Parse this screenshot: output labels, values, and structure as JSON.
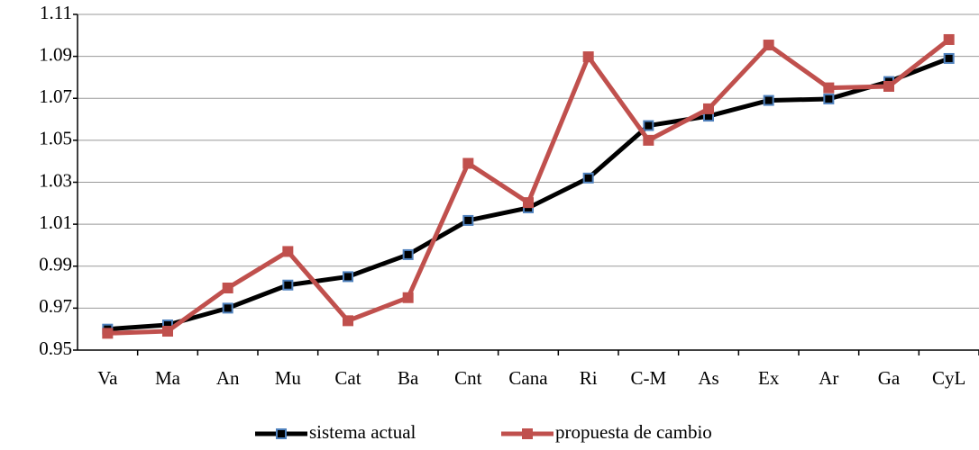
{
  "chart_data": {
    "type": "line",
    "categories": [
      "Va",
      "Ma",
      "An",
      "Mu",
      "Cat",
      "Ba",
      "Cnt",
      "Cana",
      "Ri",
      "C-M",
      "As",
      "Ex",
      "Ar",
      "Ga",
      "CyL"
    ],
    "series": [
      {
        "name": "sistema actual",
        "color": "#000000",
        "marker_color": "#4f81bd",
        "values": [
          0.96,
          0.962,
          0.97,
          0.981,
          0.985,
          0.9955,
          1.0118,
          1.0178,
          1.032,
          1.057,
          1.0615,
          1.069,
          1.0697,
          1.078,
          1.089
        ]
      },
      {
        "name": "propuesta de cambio",
        "color": "#c0504d",
        "marker_color": "#c0504d",
        "values": [
          0.958,
          0.959,
          0.9796,
          0.997,
          0.964,
          0.975,
          1.039,
          1.0203,
          1.0898,
          1.05,
          1.065,
          1.0954,
          1.075,
          1.0757,
          1.098
        ]
      }
    ],
    "ylim": [
      0.95,
      1.11
    ],
    "yticks": [
      0.95,
      0.97,
      0.99,
      1.01,
      1.03,
      1.05,
      1.07,
      1.09,
      1.11
    ],
    "grid": true,
    "legend": "bottom"
  }
}
